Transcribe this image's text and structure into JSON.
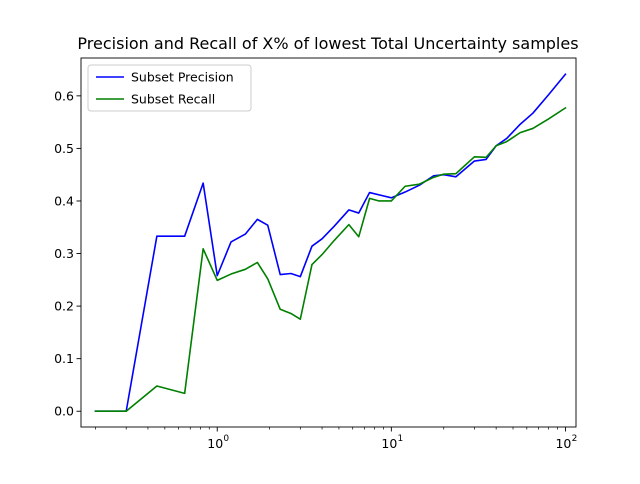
{
  "chart_data": {
    "type": "line",
    "title": "Precision and Recall of X% of lowest Total Uncertainty samples",
    "xlabel": "",
    "ylabel": "",
    "xscale": "log",
    "xlim": [
      0.165,
      115
    ],
    "ylim": [
      -0.03,
      0.672
    ],
    "grid": false,
    "legend_position": "top-left",
    "x_ticks": [
      {
        "value": 1,
        "label": "10",
        "exp": "0"
      },
      {
        "value": 10,
        "label": "10",
        "exp": "1"
      },
      {
        "value": 100,
        "label": "10",
        "exp": "2"
      }
    ],
    "y_ticks": [
      {
        "value": 0.0,
        "label": "0.0"
      },
      {
        "value": 0.1,
        "label": "0.1"
      },
      {
        "value": 0.2,
        "label": "0.2"
      },
      {
        "value": 0.3,
        "label": "0.3"
      },
      {
        "value": 0.4,
        "label": "0.4"
      },
      {
        "value": 0.5,
        "label": "0.5"
      },
      {
        "value": 0.6,
        "label": "0.6"
      }
    ],
    "series": [
      {
        "name": "Subset Precision",
        "color": "#0000ff",
        "x": [
          0.2,
          0.3,
          0.45,
          0.65,
          0.83,
          1.0,
          1.2,
          1.45,
          1.7,
          1.95,
          2.3,
          2.65,
          3.0,
          3.5,
          4.0,
          4.7,
          5.7,
          6.5,
          7.5,
          10.0,
          12.0,
          14.5,
          17.5,
          20.0,
          23.5,
          30.0,
          35.0,
          40.0,
          46.0,
          55.0,
          65.0,
          80.0,
          100.0
        ],
        "y": [
          0.0,
          0.0,
          0.333,
          0.333,
          0.434,
          0.258,
          0.322,
          0.337,
          0.365,
          0.354,
          0.26,
          0.262,
          0.256,
          0.314,
          0.328,
          0.352,
          0.383,
          0.377,
          0.416,
          0.406,
          0.417,
          0.43,
          0.448,
          0.45,
          0.446,
          0.476,
          0.479,
          0.505,
          0.519,
          0.546,
          0.567,
          0.602,
          0.641
        ]
      },
      {
        "name": "Subset Recall",
        "color": "#008000",
        "x": [
          0.2,
          0.3,
          0.45,
          0.65,
          0.83,
          1.0,
          1.2,
          1.45,
          1.7,
          1.95,
          2.3,
          2.65,
          3.0,
          3.5,
          4.0,
          4.7,
          5.7,
          6.5,
          7.5,
          8.5,
          10.0,
          12.0,
          14.5,
          17.5,
          20.0,
          23.5,
          30.0,
          35.0,
          40.0,
          46.0,
          55.0,
          65.0,
          80.0,
          100.0
        ],
        "y": [
          0.0,
          0.0,
          0.048,
          0.034,
          0.309,
          0.249,
          0.261,
          0.27,
          0.283,
          0.252,
          0.194,
          0.186,
          0.175,
          0.279,
          0.298,
          0.325,
          0.355,
          0.332,
          0.405,
          0.4,
          0.4,
          0.428,
          0.432,
          0.445,
          0.451,
          0.452,
          0.484,
          0.483,
          0.505,
          0.513,
          0.53,
          0.538,
          0.556,
          0.577
        ]
      }
    ]
  }
}
